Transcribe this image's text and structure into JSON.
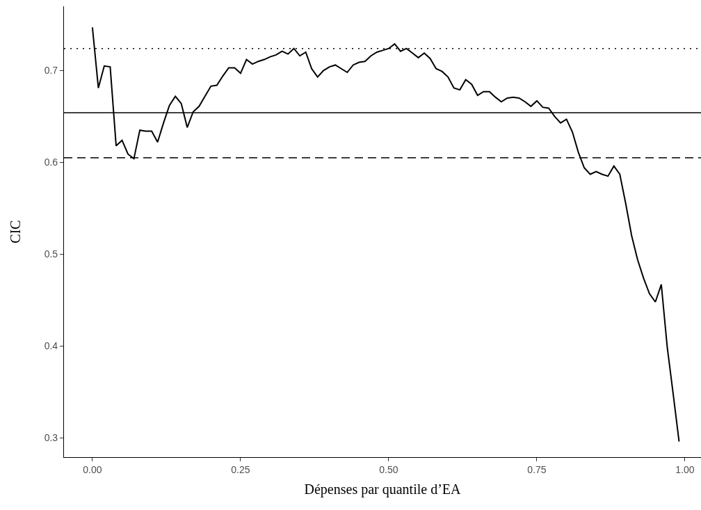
{
  "chart_data": {
    "type": "line",
    "xlabel": "Dépenses par quantile d’EA",
    "ylabel": "CIC",
    "x": [
      0.0,
      0.01,
      0.02,
      0.03,
      0.04,
      0.05,
      0.06,
      0.07,
      0.08,
      0.09,
      0.1,
      0.11,
      0.12,
      0.13,
      0.14,
      0.15,
      0.16,
      0.17,
      0.18,
      0.19,
      0.2,
      0.21,
      0.22,
      0.23,
      0.24,
      0.25,
      0.26,
      0.27,
      0.28,
      0.29,
      0.3,
      0.31,
      0.32,
      0.33,
      0.34,
      0.35,
      0.36,
      0.37,
      0.38,
      0.39,
      0.4,
      0.41,
      0.42,
      0.43,
      0.44,
      0.45,
      0.46,
      0.47,
      0.48,
      0.49,
      0.5,
      0.51,
      0.52,
      0.53,
      0.54,
      0.55,
      0.56,
      0.57,
      0.58,
      0.59,
      0.6,
      0.61,
      0.62,
      0.63,
      0.64,
      0.65,
      0.66,
      0.67,
      0.68,
      0.69,
      0.7,
      0.71,
      0.72,
      0.73,
      0.74,
      0.75,
      0.76,
      0.77,
      0.78,
      0.79,
      0.8,
      0.81,
      0.82,
      0.83,
      0.84,
      0.85,
      0.86,
      0.87,
      0.88,
      0.89,
      0.9,
      0.91,
      0.92,
      0.93,
      0.94,
      0.95,
      0.96,
      0.97,
      0.98,
      0.99
    ],
    "series": [
      {
        "color": "#000000",
        "line_style": "solid",
        "values": [
          0.747,
          0.681,
          0.705,
          0.704,
          0.618,
          0.624,
          0.609,
          0.604,
          0.635,
          0.634,
          0.634,
          0.622,
          0.643,
          0.662,
          0.672,
          0.664,
          0.638,
          0.655,
          0.661,
          0.672,
          0.683,
          0.684,
          0.694,
          0.703,
          0.703,
          0.697,
          0.712,
          0.707,
          0.71,
          0.712,
          0.715,
          0.717,
          0.721,
          0.718,
          0.724,
          0.716,
          0.72,
          0.702,
          0.693,
          0.7,
          0.704,
          0.706,
          0.702,
          0.698,
          0.706,
          0.709,
          0.71,
          0.716,
          0.72,
          0.722,
          0.724,
          0.729,
          0.721,
          0.724,
          0.719,
          0.714,
          0.719,
          0.713,
          0.702,
          0.699,
          0.693,
          0.681,
          0.679,
          0.69,
          0.685,
          0.673,
          0.677,
          0.677,
          0.671,
          0.666,
          0.67,
          0.671,
          0.67,
          0.666,
          0.661,
          0.667,
          0.66,
          0.659,
          0.65,
          0.643,
          0.647,
          0.633,
          0.611,
          0.594,
          0.587,
          0.59,
          0.587,
          0.585,
          0.596,
          0.587,
          0.555,
          0.52,
          0.494,
          0.474,
          0.457,
          0.448,
          0.467,
          0.399,
          0.348,
          0.296
        ]
      }
    ],
    "xlim": [
      -0.048,
      1.027
    ],
    "xticks": [
      {
        "value": 0,
        "label": "0.00"
      },
      0.25,
      {
        "value": 0.5,
        "label": "0.50"
      },
      0.75,
      {
        "value": 1,
        "label": "1.00"
      }
    ],
    "ylim": [
      0.279,
      0.77
    ],
    "yticks": [
      0.3,
      0.4,
      0.5,
      0.6,
      0.7
    ],
    "ref_lines": [
      {
        "axis": "y",
        "value": 0.724,
        "color": "#000000",
        "line_style": "dotted"
      },
      {
        "axis": "y",
        "value": 0.654,
        "color": "#000000",
        "line_style": "solid"
      },
      {
        "axis": "y",
        "value": 0.605,
        "color": "#000000",
        "line_style": "dashed"
      }
    ]
  }
}
